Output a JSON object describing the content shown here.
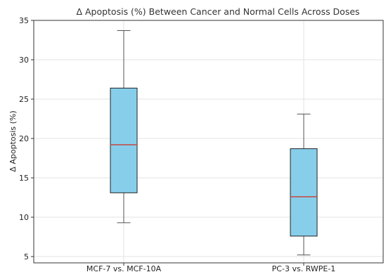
{
  "chart_data": {
    "type": "box",
    "title": "Δ Apoptosis (%) Between Cancer and Normal Cells Across Doses",
    "xlabel": "",
    "ylabel": "Δ Apoptosis (%)",
    "ylim": [
      4.2,
      35
    ],
    "yticks": [
      5,
      10,
      15,
      20,
      25,
      30,
      35
    ],
    "grid": true,
    "categories": [
      "MCF-7 vs. MCF-10A",
      "PC-3 vs. RWPE-1"
    ],
    "boxes": [
      {
        "category": "MCF-7 vs. MCF-10A",
        "min": 9.3,
        "q1": 13.1,
        "median": 19.2,
        "q3": 26.4,
        "max": 33.7
      },
      {
        "category": "PC-3 vs. RWPE-1",
        "min": 5.2,
        "q1": 7.6,
        "median": 12.6,
        "q3": 18.7,
        "max": 23.1
      }
    ],
    "colors": {
      "box_fill": "#87ceeb",
      "median": "#c0504d",
      "whisker": "#555555",
      "edge": "#222222",
      "grid": "#e3e3e3"
    }
  }
}
